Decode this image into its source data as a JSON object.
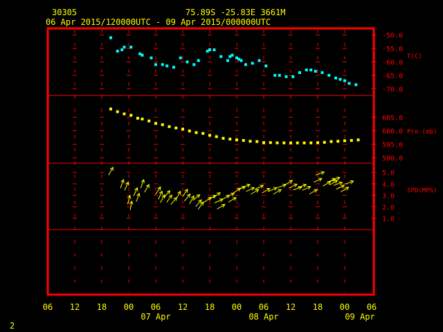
{
  "header": {
    "station": "30305",
    "location": "75.89S  -25.83E  3661M",
    "period": "06 Apr 2015/120000UTC - 09 Apr 2015/000000UTC"
  },
  "footer": {
    "page": "2"
  },
  "colors": {
    "frame": "#ff0000",
    "temp": "#00ffff",
    "pres": "#ffff00",
    "wind": "#ffff00",
    "axis_text": "#ffff00",
    "label_text": "#ff0000"
  },
  "chart_data": {
    "type": "scatter",
    "x_axis": {
      "unit": "hours since 06 Apr 2015 00 UTC",
      "range": [
        0,
        72
      ],
      "ticks": [
        0,
        6,
        12,
        18,
        24,
        30,
        36,
        42,
        48,
        54,
        60,
        66,
        72
      ],
      "tick_labels": [
        "06",
        "12",
        "18",
        "00",
        "06",
        "12",
        "18",
        "00",
        "06",
        "12",
        "18",
        "00",
        "06"
      ],
      "date_labels": [
        {
          "label": "07 Apr",
          "at": 24
        },
        {
          "label": "08 Apr",
          "at": 48
        },
        {
          "label": "09 Apr",
          "at": 72
        }
      ]
    },
    "panels": [
      {
        "key": "temp",
        "label": "T(C)",
        "ylim": [
          -72.5,
          -47.5
        ],
        "ticks": [
          -50.0,
          -55.0,
          -60.0,
          -65.0,
          -70.0
        ],
        "tick_labels": [
          "-50.0",
          "-55.0",
          "-60.0",
          "-65.0",
          "-70.0"
        ],
        "label_at": -57.5,
        "points": [
          [
            14,
            -51.0
          ],
          [
            15.5,
            -56.0
          ],
          [
            16.5,
            -55.5
          ],
          [
            17,
            -54.5
          ],
          [
            18.5,
            -54.5
          ],
          [
            20.5,
            -57.0
          ],
          [
            21,
            -57.5
          ],
          [
            23,
            -58.5
          ],
          [
            24,
            -61.0
          ],
          [
            25.5,
            -61.0
          ],
          [
            26.5,
            -61.5
          ],
          [
            28,
            -62.0
          ],
          [
            29.5,
            -58.5
          ],
          [
            31,
            -60.0
          ],
          [
            32.5,
            -61.0
          ],
          [
            33.5,
            -59.5
          ],
          [
            35.5,
            -56.0
          ],
          [
            36,
            -55.5
          ],
          [
            37,
            -55.5
          ],
          [
            38.5,
            -58.0
          ],
          [
            40,
            -59.5
          ],
          [
            40.5,
            -58.0
          ],
          [
            41,
            -57.5
          ],
          [
            42,
            -58.5
          ],
          [
            42.5,
            -59.0
          ],
          [
            43,
            -59.5
          ],
          [
            44,
            -61.0
          ],
          [
            45.5,
            -60.5
          ],
          [
            47,
            -59.5
          ],
          [
            48.5,
            -61.5
          ],
          [
            50.5,
            -65.0
          ],
          [
            51.5,
            -65.0
          ],
          [
            53,
            -65.5
          ],
          [
            54.5,
            -65.5
          ],
          [
            56,
            -64.0
          ],
          [
            57.5,
            -63.0
          ],
          [
            58.5,
            -63.0
          ],
          [
            59.5,
            -63.5
          ],
          [
            61,
            -64.0
          ],
          [
            62.5,
            -65.0
          ],
          [
            64,
            -66.0
          ],
          [
            65,
            -66.5
          ],
          [
            66,
            -67.0
          ],
          [
            67,
            -68.0
          ],
          [
            68.5,
            -68.5
          ]
        ]
      },
      {
        "key": "pres",
        "label": "Pre (mb)",
        "ylim": [
          588.0,
          613.0
        ],
        "ticks": [
          605.0,
          600.0,
          595.0,
          590.0
        ],
        "tick_labels": [
          "605.0",
          "600.0",
          "595.0",
          "590.0"
        ],
        "label_at": 600.0,
        "points": [
          [
            14,
            608.0
          ],
          [
            15.5,
            607.0
          ],
          [
            17,
            606.2
          ],
          [
            18.5,
            605.7
          ],
          [
            20,
            604.6
          ],
          [
            21,
            604.3
          ],
          [
            22.5,
            603.6
          ],
          [
            24,
            602.7
          ],
          [
            25.5,
            602.2
          ],
          [
            27,
            601.5
          ],
          [
            28.5,
            601.0
          ],
          [
            30,
            600.6
          ],
          [
            31.5,
            599.9
          ],
          [
            33,
            599.3
          ],
          [
            34.5,
            599.0
          ],
          [
            36,
            598.3
          ],
          [
            37.5,
            597.8
          ],
          [
            39,
            597.2
          ],
          [
            40.5,
            596.9
          ],
          [
            42,
            596.6
          ],
          [
            43.5,
            596.4
          ],
          [
            45,
            596.1
          ],
          [
            46.5,
            596.0
          ],
          [
            48,
            595.6
          ],
          [
            49.5,
            595.6
          ],
          [
            51,
            595.5
          ],
          [
            52.5,
            595.5
          ],
          [
            54,
            595.5
          ],
          [
            55.5,
            595.5
          ],
          [
            57,
            595.5
          ],
          [
            58.5,
            595.5
          ],
          [
            60,
            595.6
          ],
          [
            61.5,
            595.7
          ],
          [
            63,
            596.0
          ],
          [
            64.5,
            596.1
          ],
          [
            66,
            596.3
          ],
          [
            67.5,
            596.4
          ],
          [
            69,
            596.6
          ]
        ]
      },
      {
        "key": "wind",
        "label": "SPD(MPS)",
        "ylim": [
          0,
          5.8
        ],
        "ticks": [
          5.0,
          4.0,
          3.0,
          2.0,
          1.0
        ],
        "tick_labels": [
          "5.0",
          "4.0",
          "3.0",
          "2.0",
          "1.0"
        ],
        "label_at": 3.5,
        "points": [
          [
            14,
            5.1,
            210
          ],
          [
            16.5,
            4.0,
            200
          ],
          [
            17.5,
            3.8,
            205
          ],
          [
            18,
            2.6,
            195
          ],
          [
            18.5,
            2.1,
            190
          ],
          [
            19.5,
            3.3,
            205
          ],
          [
            20,
            2.8,
            200
          ],
          [
            21,
            4.0,
            200
          ],
          [
            22,
            3.6,
            210
          ],
          [
            24.5,
            3.4,
            215
          ],
          [
            25,
            3.0,
            205
          ],
          [
            25.5,
            2.7,
            210
          ],
          [
            26.5,
            3.1,
            220
          ],
          [
            27,
            2.7,
            215
          ],
          [
            28,
            2.5,
            220
          ],
          [
            29,
            3.0,
            210
          ],
          [
            30.5,
            3.2,
            215
          ],
          [
            31,
            2.8,
            220
          ],
          [
            32,
            2.6,
            210
          ],
          [
            33,
            2.8,
            230
          ],
          [
            33.5,
            2.3,
            220
          ],
          [
            34,
            2.1,
            215
          ],
          [
            35.5,
            2.6,
            235
          ],
          [
            36.5,
            2.8,
            240
          ],
          [
            37.5,
            3.0,
            235
          ],
          [
            38,
            2.5,
            245
          ],
          [
            38.5,
            2.0,
            240
          ],
          [
            39.5,
            2.8,
            240
          ],
          [
            40.5,
            3.0,
            245
          ],
          [
            41,
            2.6,
            240
          ],
          [
            42,
            3.4,
            235
          ],
          [
            43,
            3.6,
            245
          ],
          [
            44,
            3.8,
            250
          ],
          [
            45,
            3.5,
            245
          ],
          [
            46,
            3.3,
            240
          ],
          [
            47,
            3.7,
            245
          ],
          [
            48.5,
            3.4,
            240
          ],
          [
            50,
            3.5,
            245
          ],
          [
            51,
            3.3,
            240
          ],
          [
            52,
            3.8,
            250
          ],
          [
            53.5,
            4.1,
            240
          ],
          [
            54.5,
            3.8,
            245
          ],
          [
            55.5,
            3.6,
            250
          ],
          [
            56.5,
            3.8,
            250
          ],
          [
            57.5,
            3.6,
            245
          ],
          [
            59,
            3.3,
            240
          ],
          [
            60,
            4.3,
            245
          ],
          [
            60.5,
            4.9,
            250
          ],
          [
            62,
            4.0,
            240
          ],
          [
            63,
            4.3,
            245
          ],
          [
            63.5,
            4.1,
            240
          ],
          [
            64,
            4.4,
            245
          ],
          [
            64.5,
            4.0,
            250
          ],
          [
            65,
            3.7,
            245
          ],
          [
            66,
            3.5,
            240
          ],
          [
            67,
            4.1,
            250
          ]
        ]
      }
    ]
  }
}
